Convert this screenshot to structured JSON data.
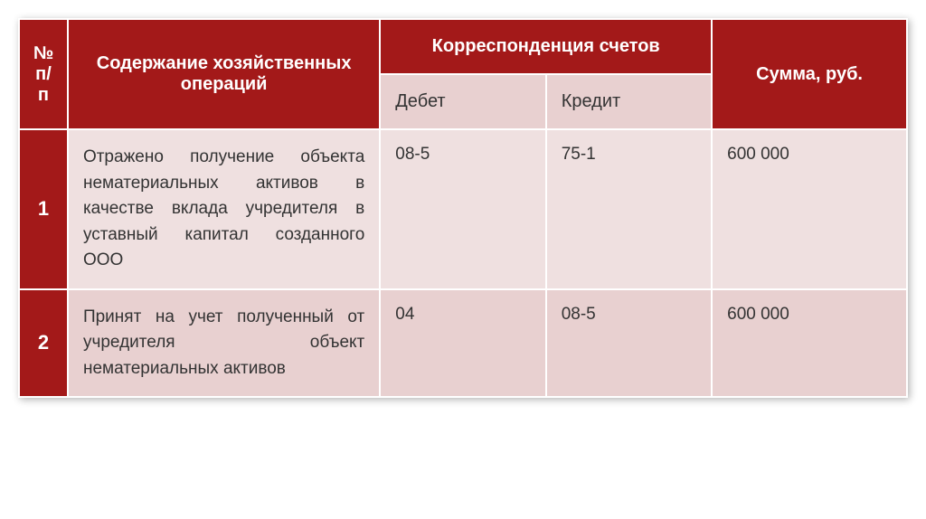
{
  "table": {
    "headers": {
      "num": "№ п/п",
      "description": "Содержание хозяйственных операций",
      "correspondence": "Корреспонденция счетов",
      "debit": "Дебет",
      "credit": "Кредит",
      "sum": "Сумма, руб."
    },
    "rows": [
      {
        "num": "1",
        "description": "Отражено получение объекта нематериальных активов в качестве вклада учредителя в уставный капитал созданного ООО",
        "debit": "08-5",
        "credit": "75-1",
        "sum": "600 000"
      },
      {
        "num": "2",
        "description": "Принят на учет полученный от учредителя объект нематериальных активов",
        "debit": "04",
        "credit": "08-5",
        "sum": "600 000"
      }
    ],
    "colors": {
      "header_bg": "#a31919",
      "header_text": "#ffffff",
      "sub_header_bg": "#e8d0d0",
      "row1_bg": "#efe0e0",
      "row2_bg": "#e8d0d0",
      "border": "#ffffff",
      "text": "#333333"
    }
  }
}
